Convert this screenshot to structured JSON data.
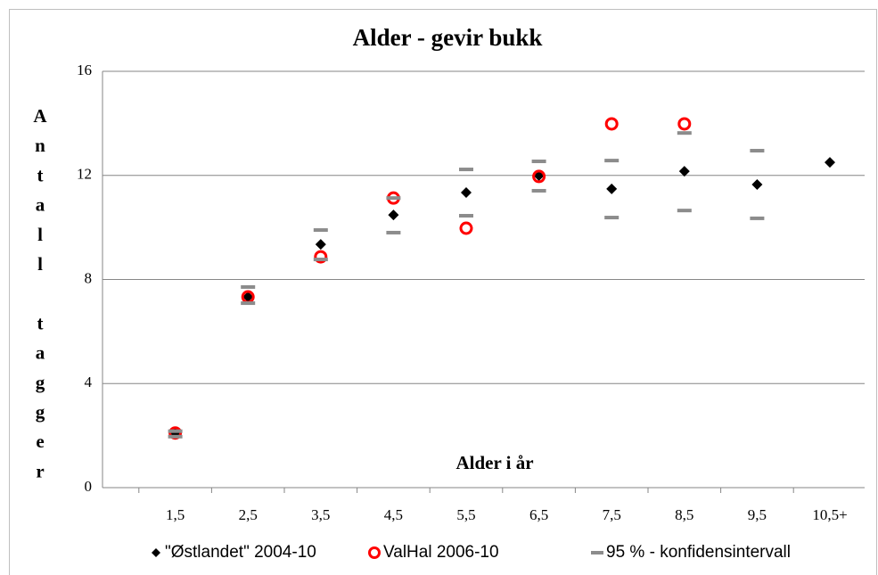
{
  "chart_data": {
    "type": "scatter",
    "title": "Alder - gevir bukk",
    "y_label": "Antall tagger",
    "x_label": "Alder i år",
    "categories": [
      null,
      "1,5",
      "2,5",
      "3,5",
      "4,5",
      "5,5",
      "6,5",
      "7,5",
      "8,5",
      "9,5",
      "10,5+"
    ],
    "ylim": [
      0,
      16
    ],
    "yticks": [
      0,
      4,
      8,
      12,
      16
    ],
    "grid": true,
    "series": [
      {
        "name": "\"Østlandet\" 2004-10",
        "color": "#000000",
        "marker": "diamond",
        "values": [
          null,
          2.1,
          7.33,
          9.35,
          10.48,
          11.34,
          11.99,
          11.48,
          12.16,
          11.65,
          12.5
        ]
      },
      {
        "name": "ValHal 2006-10",
        "color": "#ff0000",
        "marker": "circle",
        "values": [
          null,
          2.1,
          7.33,
          8.87,
          11.13,
          9.97,
          11.96,
          13.98,
          13.98,
          null,
          null
        ]
      },
      {
        "name": "95 % - konfidensintervall",
        "color": "#8c8c8c",
        "marker": "dash",
        "low": [
          null,
          1.96,
          7.09,
          8.77,
          9.8,
          10.45,
          11.41,
          10.38,
          10.65,
          10.35,
          null
        ],
        "high": [
          null,
          2.17,
          7.71,
          9.9,
          11.13,
          12.23,
          12.54,
          12.57,
          13.63,
          12.95,
          null
        ]
      }
    ]
  }
}
